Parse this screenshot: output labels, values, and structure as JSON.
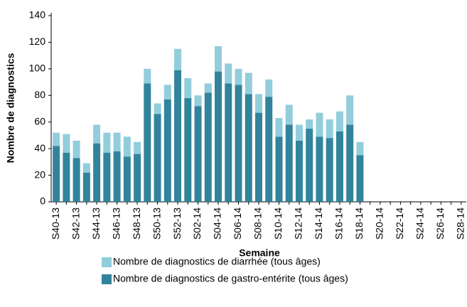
{
  "chart_data": {
    "type": "stacked-bar",
    "y_label": "Nombre de diagnostics",
    "x_label": "Semaine",
    "categories": [
      "S40-13",
      null,
      "S42-13",
      null,
      "S44-13",
      null,
      "S46-13",
      null,
      "S48-13",
      null,
      "S50-13",
      null,
      "S52-13",
      null,
      "S02-14",
      null,
      "S04-14",
      null,
      "S06-14",
      null,
      "S08-14",
      null,
      "S10-14",
      null,
      "S12-14",
      null,
      "S14-14",
      null,
      "S16-14",
      null,
      "S18-14",
      null,
      "S20-14",
      null,
      "S22-14",
      null,
      "S24-14",
      null,
      "S26-14",
      null,
      "S28-14"
    ],
    "series": [
      {
        "name": "Nombre de diagnostics de diarrhée (tous âges)",
        "color": "#92cddc",
        "values": [
          10,
          14,
          13,
          7,
          14,
          15,
          14,
          15,
          9,
          11,
          8,
          11,
          16,
          15,
          8,
          7,
          19,
          15,
          12,
          16,
          14,
          13,
          14,
          15,
          12,
          7,
          18,
          14,
          15,
          22,
          10,
          null,
          null,
          null,
          null,
          null,
          null,
          null,
          null,
          null,
          null
        ]
      },
      {
        "name": "Nombre de diagnostics de gastro-entérite (tous âges)",
        "color": "#31849b",
        "values": [
          42,
          37,
          33,
          22,
          44,
          37,
          38,
          34,
          36,
          89,
          66,
          77,
          99,
          78,
          72,
          82,
          98,
          89,
          88,
          81,
          67,
          79,
          49,
          58,
          46,
          55,
          49,
          48,
          53,
          58,
          35,
          null,
          null,
          null,
          null,
          null,
          null,
          null,
          null,
          null,
          null
        ]
      }
    ],
    "stack_order": [
      1,
      0
    ],
    "ylim": [
      0,
      140
    ],
    "yticks": [
      0,
      20,
      40,
      60,
      80,
      100,
      120,
      140
    ],
    "grid": false
  }
}
